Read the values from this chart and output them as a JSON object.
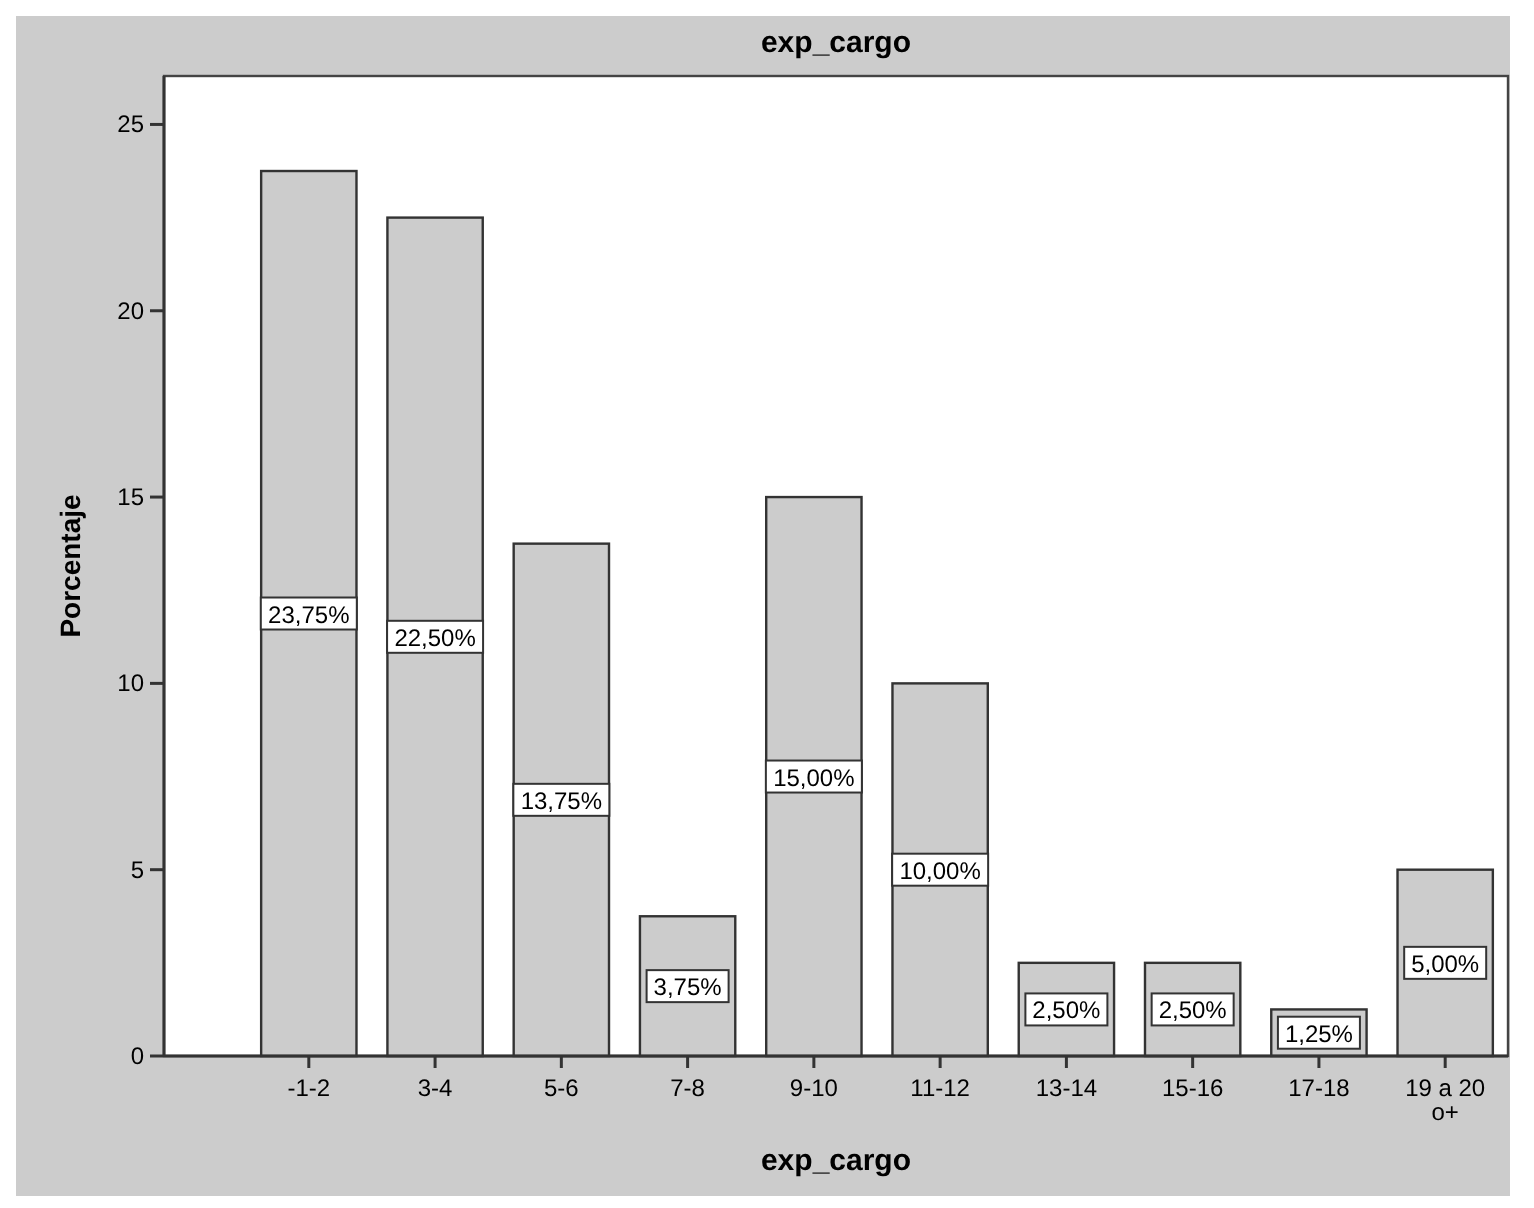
{
  "chart_data": {
    "type": "bar",
    "title": "exp_cargo",
    "xlabel": "exp_cargo",
    "ylabel": "Porcentaje",
    "categories": [
      "-1-2",
      "3-4",
      "5-6",
      "7-8",
      "9-10",
      "11-12",
      "13-14",
      "15-16",
      "17-18",
      "19 a 20 o+"
    ],
    "values": [
      23.75,
      22.5,
      13.75,
      3.75,
      15,
      10,
      2.5,
      2.5,
      1.25,
      5
    ],
    "value_labels": [
      "23,75%",
      "22,50%",
      "13,75%",
      "3,75%",
      "15,00%",
      "10,00%",
      "2,50%",
      "2,50%",
      "1,25%",
      "5,00%"
    ],
    "color": "#cccccc",
    "ylim": [
      0,
      26.3
    ],
    "yticks": [
      0,
      5,
      10,
      15,
      20,
      25
    ],
    "grid": false
  }
}
